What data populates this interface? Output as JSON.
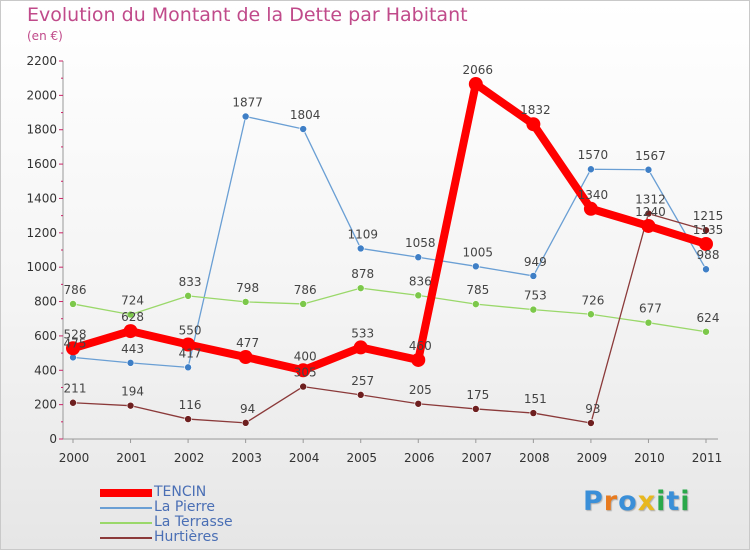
{
  "title": "Evolution du Montant de la Dette par Habitant",
  "unit_label": "(en €)",
  "brand": {
    "letters": [
      "P",
      "r",
      "o",
      "x",
      "i",
      "t",
      "i"
    ],
    "colors": [
      "#3a8fd8",
      "#e87a1e",
      "#3a8fd8",
      "#e8b81e",
      "#2aa84a",
      "#3a8fd8",
      "#2aa84a"
    ]
  },
  "chart_data": {
    "type": "line",
    "x": [
      "2000",
      "2001",
      "2002",
      "2003",
      "2004",
      "2005",
      "2006",
      "2007",
      "2008",
      "2009",
      "2010",
      "2011"
    ],
    "ylim": [
      0,
      2200
    ],
    "yticks": [
      0,
      200,
      400,
      600,
      800,
      1000,
      1200,
      1400,
      1600,
      1800,
      2000,
      2200
    ],
    "grid": false,
    "legend_position": "bottom-left",
    "series": [
      {
        "name": "TENCIN",
        "color": "#ff0000",
        "emphasis": true,
        "values": [
          528,
          628,
          550,
          477,
          400,
          533,
          460,
          2066,
          1832,
          1340,
          1240,
          1135
        ]
      },
      {
        "name": "La Pierre",
        "color": "#6a9fd4",
        "marker": "#3f7fc6",
        "values": [
          475,
          443,
          417,
          1877,
          1804,
          1109,
          1058,
          1005,
          949,
          1570,
          1567,
          988
        ]
      },
      {
        "name": "La Terrasse",
        "color": "#9ad86a",
        "marker": "#7cc84a",
        "values": [
          786,
          724,
          833,
          798,
          786,
          878,
          836,
          785,
          753,
          726,
          677,
          624
        ]
      },
      {
        "name": "Hurtières",
        "color": "#8b3a3a",
        "marker": "#6e1f1f",
        "values": [
          211,
          194,
          116,
          94,
          305,
          257,
          205,
          175,
          151,
          93,
          1312,
          1215
        ]
      }
    ]
  }
}
